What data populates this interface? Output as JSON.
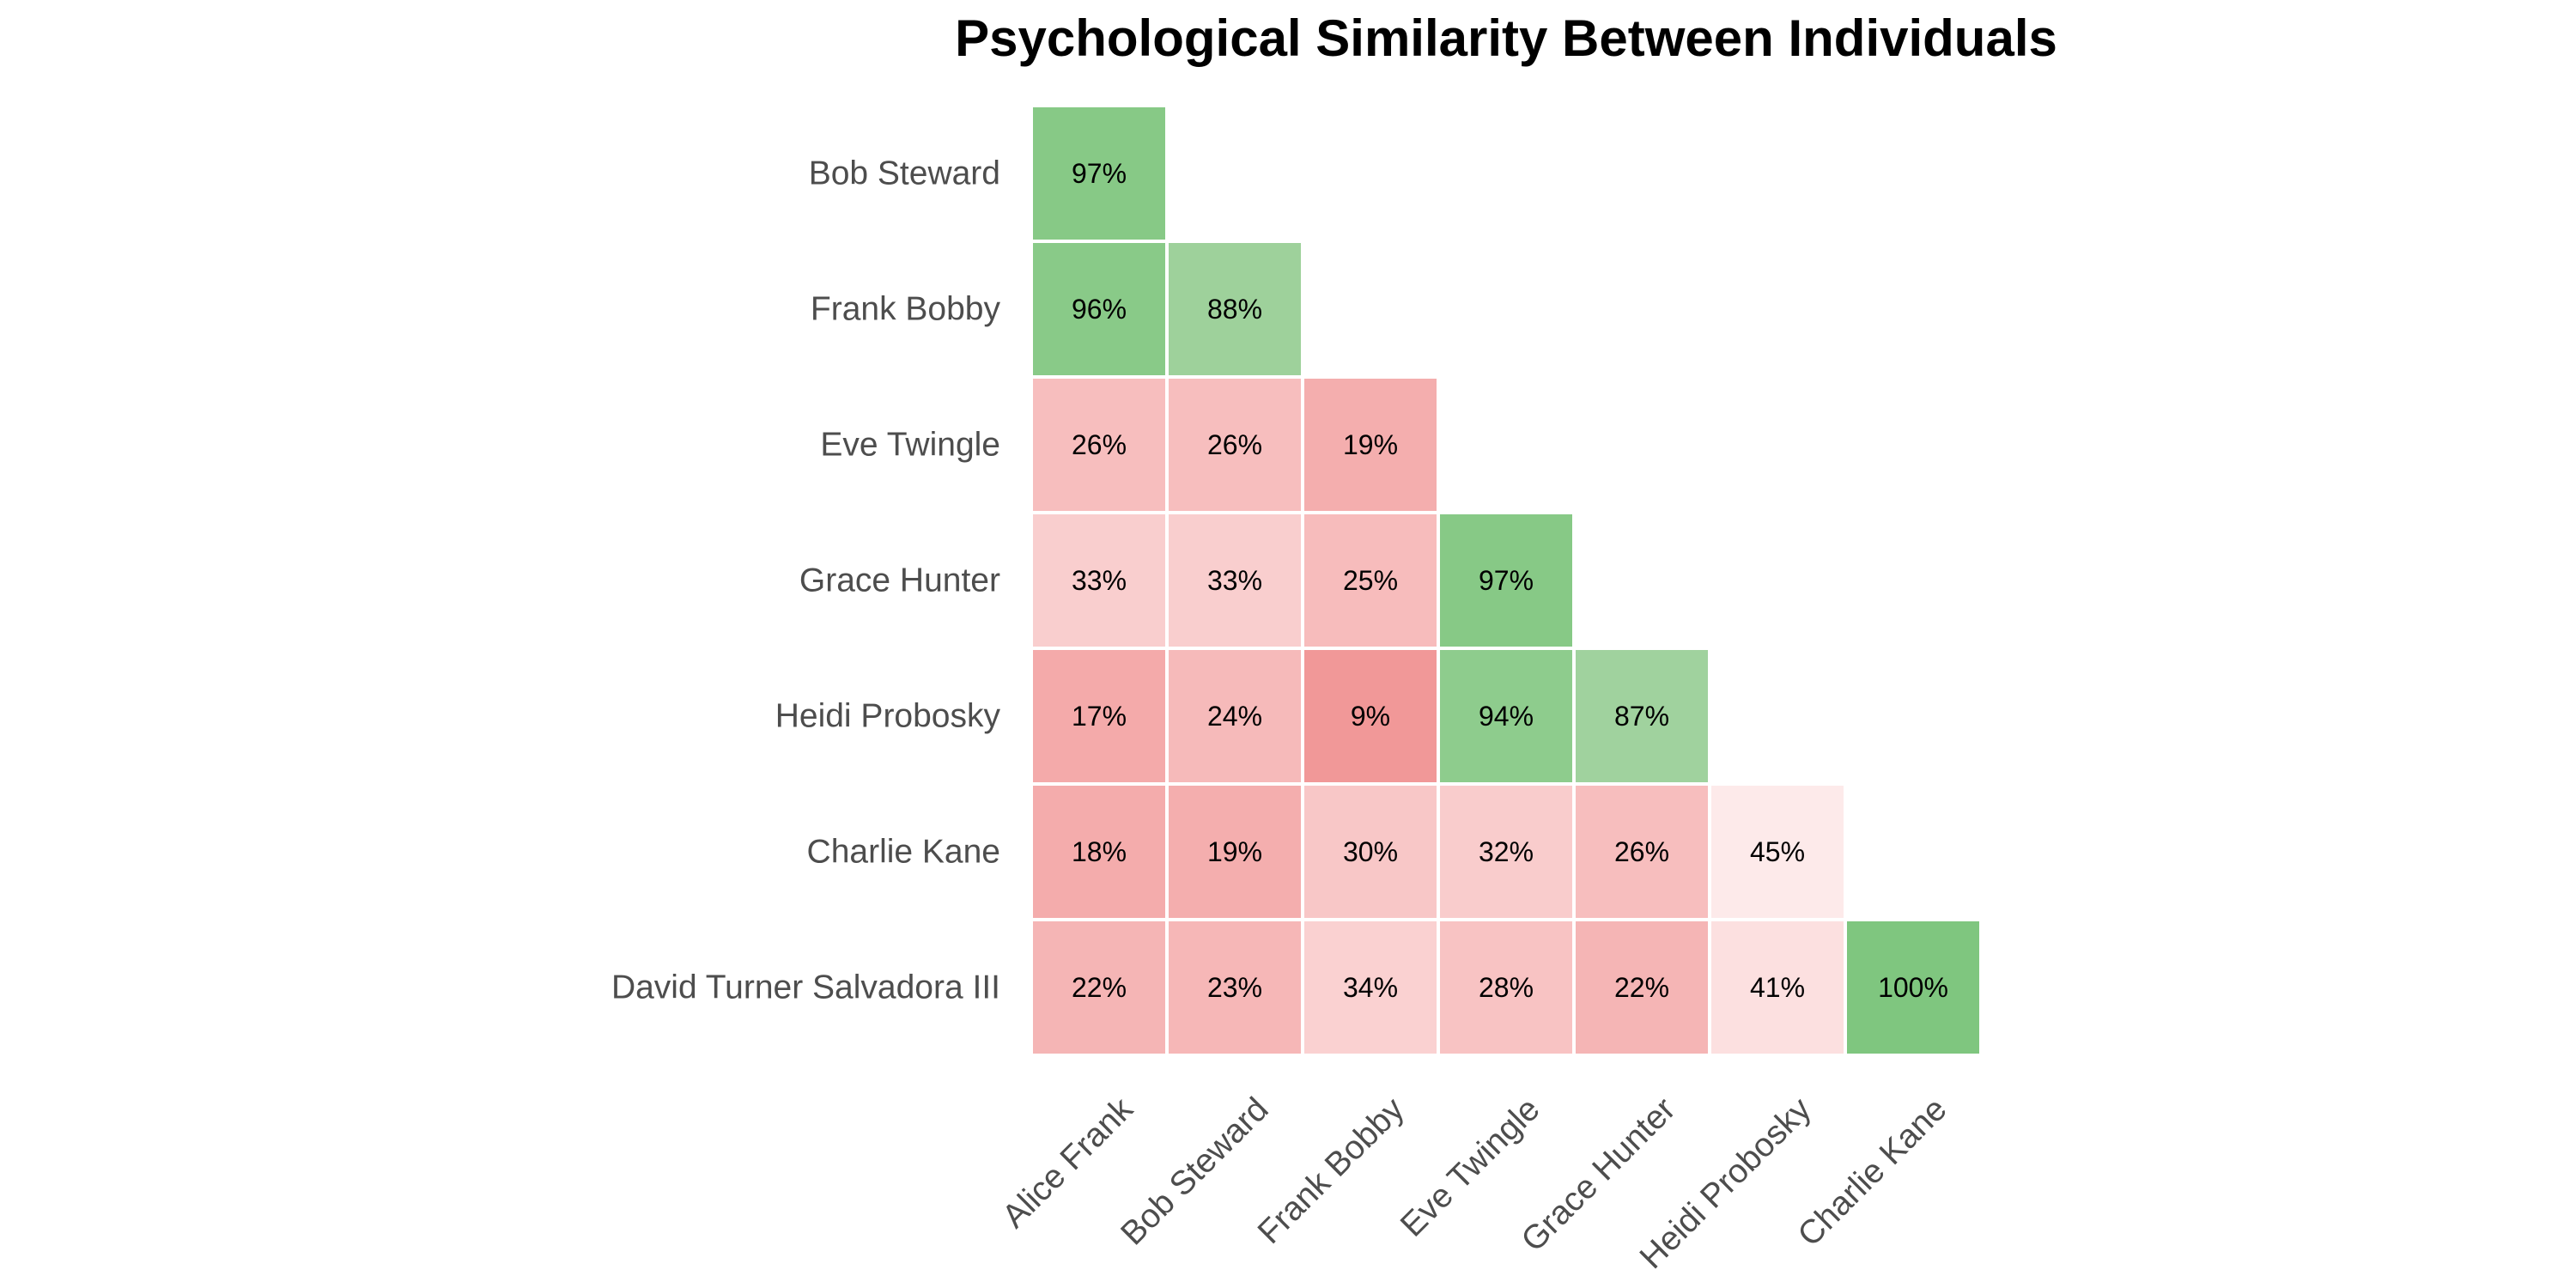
{
  "chart_data": {
    "type": "heatmap",
    "title": "Psychological Similarity Between Individuals",
    "xlabel": "",
    "ylabel": "",
    "value_format": "percent",
    "color_scale": {
      "low_color": "#ee8383",
      "mid_color": "#fff5f5",
      "high_color": "#7fc67f",
      "low_value": 0,
      "mid_value": 50,
      "high_value": 100
    },
    "rows": [
      "Bob Steward",
      "Frank Bobby",
      "Eve Twingle",
      "Grace Hunter",
      "Heidi Probosky",
      "Charlie Kane",
      "David Turner Salvadora III"
    ],
    "columns": [
      "Alice Frank",
      "Bob Steward",
      "Frank Bobby",
      "Eve Twingle",
      "Grace Hunter",
      "Heidi Probosky",
      "Charlie Kane"
    ],
    "values": [
      [
        97,
        null,
        null,
        null,
        null,
        null,
        null
      ],
      [
        96,
        88,
        null,
        null,
        null,
        null,
        null
      ],
      [
        26,
        26,
        19,
        null,
        null,
        null,
        null
      ],
      [
        33,
        33,
        25,
        97,
        null,
        null,
        null
      ],
      [
        17,
        24,
        9,
        94,
        87,
        null,
        null
      ],
      [
        18,
        19,
        30,
        32,
        26,
        45,
        null
      ],
      [
        22,
        23,
        34,
        28,
        22,
        41,
        100
      ]
    ]
  }
}
